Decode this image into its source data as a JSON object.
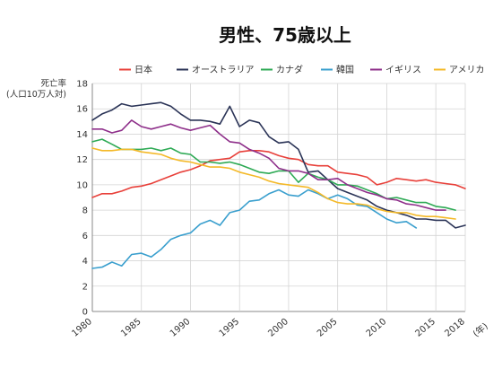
{
  "chart_data": {
    "type": "line",
    "title": "男性、75歳以上",
    "ylabel_line1": "死亡率",
    "ylabel_line2": "(人口10万人対)",
    "xunit": "(年)",
    "xlim": [
      1980,
      2018
    ],
    "ylim": [
      0,
      18
    ],
    "yticks": [
      0,
      2,
      4,
      6,
      8,
      10,
      12,
      14,
      16,
      18
    ],
    "xticks": [
      1980,
      1985,
      1990,
      1995,
      2000,
      2005,
      2010,
      2015,
      2018
    ],
    "grid": true,
    "legend_position": "top",
    "series": [
      {
        "name": "日本",
        "color": "#e8403a",
        "x": [
          1980,
          1981,
          1982,
          1983,
          1984,
          1985,
          1986,
          1987,
          1988,
          1989,
          1990,
          1991,
          1992,
          1993,
          1994,
          1995,
          1996,
          1997,
          1998,
          1999,
          2000,
          2001,
          2002,
          2003,
          2004,
          2005,
          2006,
          2007,
          2008,
          2009,
          2010,
          2011,
          2012,
          2013,
          2014,
          2015,
          2016,
          2017,
          2018
        ],
        "values": [
          9.0,
          9.3,
          9.3,
          9.5,
          9.8,
          9.9,
          10.1,
          10.4,
          10.7,
          11.0,
          11.2,
          11.5,
          11.9,
          12.0,
          12.1,
          12.6,
          12.7,
          12.7,
          12.6,
          12.3,
          12.1,
          12.0,
          11.6,
          11.5,
          11.5,
          11.0,
          10.9,
          10.8,
          10.6,
          10.0,
          10.2,
          10.5,
          10.4,
          10.3,
          10.4,
          10.2,
          10.1,
          10.0,
          9.7
        ]
      },
      {
        "name": "オーストラリア",
        "color": "#2b3457",
        "x": [
          1980,
          1981,
          1982,
          1983,
          1984,
          1985,
          1986,
          1987,
          1988,
          1989,
          1990,
          1991,
          1992,
          1993,
          1994,
          1995,
          1996,
          1997,
          1998,
          1999,
          2000,
          2001,
          2002,
          2003,
          2004,
          2005,
          2006,
          2007,
          2008,
          2009,
          2010,
          2011,
          2012,
          2013,
          2014,
          2015,
          2016,
          2017,
          2018
        ],
        "values": [
          15.1,
          15.6,
          15.9,
          16.4,
          16.2,
          16.3,
          16.4,
          16.5,
          16.2,
          15.6,
          15.1,
          15.1,
          15.0,
          14.8,
          16.2,
          14.6,
          15.1,
          14.9,
          13.8,
          13.3,
          13.4,
          12.8,
          11.0,
          11.1,
          10.4,
          9.7,
          9.4,
          9.1,
          8.8,
          8.3,
          8.0,
          7.8,
          7.6,
          7.3,
          7.3,
          7.2,
          7.2,
          6.6,
          6.8
        ]
      },
      {
        "name": "カナダ",
        "color": "#2eaa55",
        "x": [
          1980,
          1981,
          1982,
          1983,
          1984,
          1985,
          1986,
          1987,
          1988,
          1989,
          1990,
          1991,
          1992,
          1993,
          1994,
          1995,
          1996,
          1997,
          1998,
          1999,
          2000,
          2001,
          2002,
          2003,
          2004,
          2005,
          2006,
          2007,
          2008,
          2009,
          2010,
          2011,
          2012,
          2013,
          2014,
          2015,
          2016,
          2017
        ],
        "values": [
          13.4,
          13.6,
          13.2,
          12.8,
          12.8,
          12.8,
          12.9,
          12.7,
          12.9,
          12.5,
          12.4,
          11.8,
          11.8,
          11.7,
          11.8,
          11.6,
          11.3,
          11.0,
          10.9,
          11.1,
          11.1,
          10.2,
          10.9,
          10.6,
          10.4,
          10.0,
          10.0,
          9.9,
          9.6,
          9.3,
          8.9,
          9.0,
          8.8,
          8.6,
          8.6,
          8.3,
          8.2,
          8.0
        ]
      },
      {
        "name": "韓国",
        "color": "#3a9fce",
        "x": [
          1980,
          1981,
          1982,
          1983,
          1984,
          1985,
          1986,
          1987,
          1988,
          1989,
          1990,
          1991,
          1992,
          1993,
          1994,
          1995,
          1996,
          1997,
          1998,
          1999,
          2000,
          2001,
          2002,
          2003,
          2004,
          2005,
          2006,
          2007,
          2008,
          2009,
          2010,
          2011,
          2012,
          2013
        ],
        "values": [
          3.4,
          3.5,
          3.9,
          3.6,
          4.5,
          4.6,
          4.3,
          4.9,
          5.7,
          6.0,
          6.2,
          6.9,
          7.2,
          6.8,
          7.8,
          8.0,
          8.7,
          8.8,
          9.3,
          9.6,
          9.2,
          9.1,
          9.6,
          9.3,
          8.9,
          9.2,
          8.9,
          8.4,
          8.3,
          7.8,
          7.3,
          7.0,
          7.1,
          6.6
        ]
      },
      {
        "name": "イギリス",
        "color": "#8e2f8a",
        "x": [
          1980,
          1981,
          1982,
          1983,
          1984,
          1985,
          1986,
          1987,
          1988,
          1989,
          1990,
          1991,
          1992,
          1993,
          1994,
          1995,
          1996,
          1997,
          1998,
          1999,
          2000,
          2001,
          2002,
          2003,
          2004,
          2005,
          2006,
          2007,
          2008,
          2009,
          2010,
          2011,
          2012,
          2013,
          2014,
          2015,
          2016
        ],
        "values": [
          14.4,
          14.4,
          14.1,
          14.3,
          15.1,
          14.6,
          14.4,
          14.6,
          14.8,
          14.5,
          14.3,
          14.5,
          14.7,
          14.0,
          13.4,
          13.3,
          12.8,
          12.5,
          12.1,
          11.3,
          11.1,
          11.1,
          10.9,
          10.4,
          10.4,
          10.5,
          10.0,
          9.7,
          9.4,
          9.2,
          8.9,
          8.8,
          8.5,
          8.4,
          8.2,
          8.0,
          8.0
        ]
      },
      {
        "name": "アメリカ",
        "color": "#f4b928",
        "x": [
          1980,
          1981,
          1982,
          1983,
          1984,
          1985,
          1986,
          1987,
          1988,
          1989,
          1990,
          1991,
          1992,
          1993,
          1994,
          1995,
          1996,
          1997,
          1998,
          1999,
          2000,
          2001,
          2002,
          2003,
          2004,
          2005,
          2006,
          2007,
          2008,
          2009,
          2010,
          2011,
          2012,
          2013,
          2014,
          2015,
          2016,
          2017
        ],
        "values": [
          12.9,
          12.7,
          12.7,
          12.8,
          12.8,
          12.6,
          12.5,
          12.4,
          12.1,
          11.9,
          11.8,
          11.6,
          11.4,
          11.4,
          11.3,
          11.0,
          10.8,
          10.6,
          10.3,
          10.1,
          10.0,
          9.9,
          9.8,
          9.4,
          8.9,
          8.6,
          8.5,
          8.5,
          8.4,
          8.1,
          7.9,
          7.8,
          7.8,
          7.6,
          7.5,
          7.5,
          7.4,
          7.3
        ]
      }
    ]
  }
}
